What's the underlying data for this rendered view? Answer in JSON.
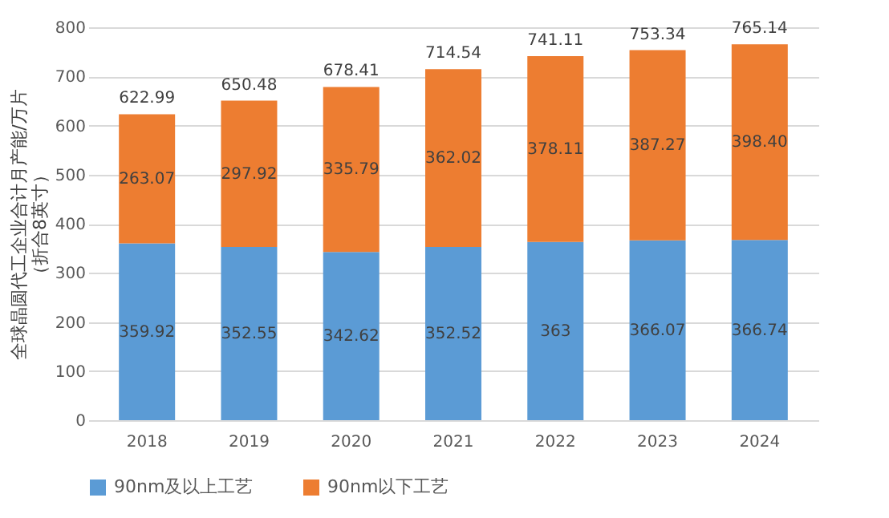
{
  "chart_data": {
    "type": "bar",
    "stacked": true,
    "ylabel": "全球晶圆代工企业合计月产能/万片（折合8英寸）",
    "categories": [
      "2018",
      "2019",
      "2020",
      "2021",
      "2022",
      "2023",
      "2024"
    ],
    "series": [
      {
        "name": "90nm及以上工艺",
        "color": "#5b9bd5",
        "values": [
          359.92,
          352.55,
          342.62,
          352.52,
          363,
          366.07,
          366.74
        ],
        "value_labels": [
          "359.92",
          "352.55",
          "342.62",
          "352.52",
          "363",
          "366.07",
          "366.74"
        ]
      },
      {
        "name": "90nm以下工艺",
        "color": "#ed7d31",
        "values": [
          263.07,
          297.92,
          335.79,
          362.02,
          378.11,
          387.27,
          398.4
        ],
        "value_labels": [
          "263.07",
          "297.92",
          "335.79",
          "362.02",
          "378.11",
          "387.27",
          "398.40"
        ]
      }
    ],
    "totals": [
      "622.99",
      "650.48",
      "678.41",
      "714.54",
      "741.11",
      "753.34",
      "765.14"
    ],
    "ylim": [
      0,
      800
    ],
    "yticks": [
      0,
      100,
      200,
      300,
      400,
      500,
      600,
      700,
      800
    ],
    "grid": "y",
    "legend": "bottom"
  }
}
